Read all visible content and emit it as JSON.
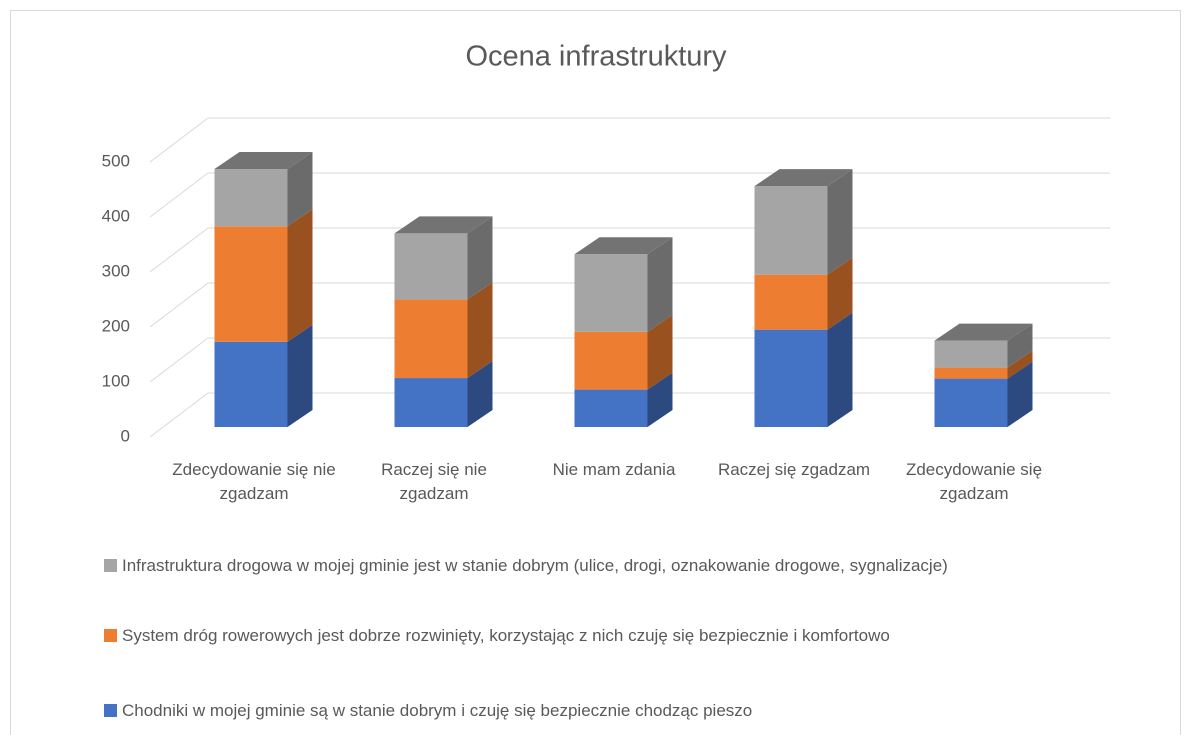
{
  "chart_data": {
    "type": "bar3d_stacked",
    "title": "Ocena infrastruktury",
    "categories": [
      "Zdecydowanie się nie zgadzam",
      "Raczej się nie zgadzam",
      "Nie mam zdania",
      "Raczej się zgadzam",
      "Zdecydowanie się zgadzam"
    ],
    "series": [
      {
        "name": "Chodniki w mojej gminie są w stanie dobrym i czuję się bezpiecznie chodząc pieszo",
        "color": "#4472c4",
        "values": [
          155,
          89,
          68,
          177,
          88
        ]
      },
      {
        "name": "System dróg rowerowych jest dobrze rozwinięty, korzystając z nich czuję się bezpiecznie i komfortowo",
        "color": "#ed7d31",
        "values": [
          210,
          143,
          105,
          100,
          20
        ]
      },
      {
        "name": "Infrastruktura drogowa w mojej gminie jest w stanie dobrym (ulice, drogi, oznakowanie drogowe, sygnalizacje)",
        "color": "#a5a5a5",
        "values": [
          104,
          120,
          141,
          161,
          49
        ]
      }
    ],
    "ylim": [
      0,
      500
    ],
    "yticks": [
      0,
      100,
      200,
      300,
      400,
      500
    ],
    "grid": true
  }
}
